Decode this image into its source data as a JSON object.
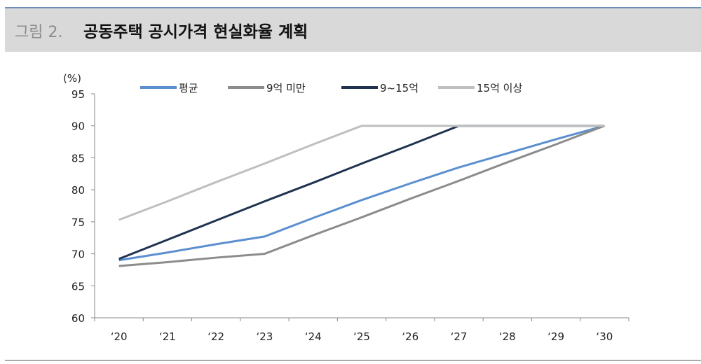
{
  "header": {
    "figure_label": "그림 2.",
    "title": "공동주택 공시가격 현실화율 계획"
  },
  "chart_data": {
    "type": "line",
    "title": "공동주택 공시가격 현실화율 계획",
    "ylabel": "(%)",
    "xlabel": "",
    "ylim": [
      60,
      95
    ],
    "yticks": [
      60,
      65,
      70,
      75,
      80,
      85,
      90,
      95
    ],
    "categories": [
      "‘20",
      "‘21",
      "‘22",
      "‘23",
      "‘24",
      "‘25",
      "‘26",
      "‘27",
      "‘28",
      "‘29",
      "‘30"
    ],
    "legend_position": "top",
    "grid": false,
    "series": [
      {
        "name": "평균",
        "color": "#5b8fd0",
        "values": [
          69.0,
          70.2,
          71.5,
          72.7,
          75.6,
          78.4,
          81.0,
          83.5,
          85.7,
          87.9,
          90.0
        ]
      },
      {
        "name": "9억 미만",
        "color": "#8c8c8c",
        "values": [
          68.1,
          68.7,
          69.4,
          70.0,
          72.9,
          75.7,
          78.6,
          81.4,
          84.3,
          87.1,
          90.0
        ]
      },
      {
        "name": "9~15억",
        "color": "#1f3350",
        "values": [
          69.2,
          72.2,
          75.2,
          78.2,
          81.1,
          84.1,
          87.0,
          90.0,
          90.0,
          90.0,
          90.0
        ]
      },
      {
        "name": "15억 이상",
        "color": "#bfbfbf",
        "values": [
          75.3,
          78.2,
          81.2,
          84.1,
          87.1,
          90.0,
          90.0,
          90.0,
          90.0,
          90.0,
          90.0
        ]
      }
    ]
  }
}
